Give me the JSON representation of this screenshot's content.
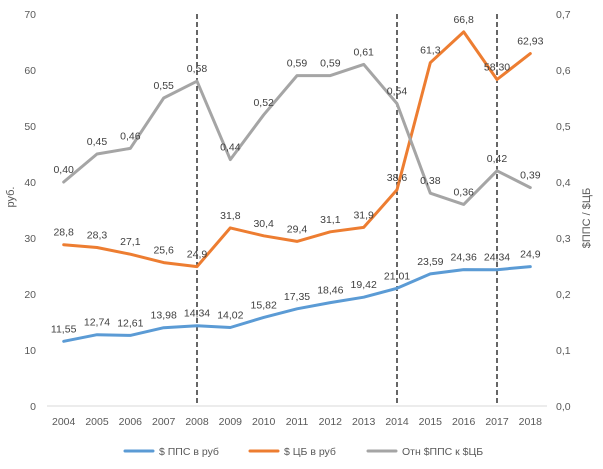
{
  "chart_data": {
    "type": "line",
    "x": [
      "2004",
      "2005",
      "2006",
      "2007",
      "2008",
      "2009",
      "2010",
      "2011",
      "2012",
      "2013",
      "2014",
      "2015",
      "2016",
      "2017",
      "2018"
    ],
    "ylabel": "руб.",
    "ylabel_right": "$ППС / $ЦБ",
    "ylim": [
      0,
      70
    ],
    "ylim_right": [
      0,
      0.7
    ],
    "yticks": [
      "0",
      "10",
      "20",
      "30",
      "40",
      "50",
      "60",
      "70"
    ],
    "yticks_right": [
      "0,0",
      "0,1",
      "0,2",
      "0,3",
      "0,4",
      "0,5",
      "0,6",
      "0,7"
    ],
    "vlines": [
      "2008",
      "2014",
      "2017"
    ],
    "grid": false,
    "legend_position": "bottom",
    "series": [
      {
        "name": "$ ППС в руб",
        "axis": "left",
        "color": "#5B9BD5",
        "values": [
          11.55,
          12.74,
          12.61,
          13.98,
          14.34,
          14.02,
          15.82,
          17.35,
          18.46,
          19.42,
          21.01,
          23.59,
          24.36,
          24.34,
          24.9
        ],
        "labels": [
          "11,55",
          "12,74",
          "12,61",
          "13,98",
          "14,34",
          "14,02",
          "15,82",
          "17,35",
          "18,46",
          "19,42",
          "21,01",
          "23,59",
          "24,36",
          "24,34",
          "24,9"
        ]
      },
      {
        "name": "$ ЦБ в руб",
        "axis": "left",
        "color": "#ED7D31",
        "values": [
          28.8,
          28.3,
          27.1,
          25.6,
          24.9,
          31.8,
          30.4,
          29.4,
          31.1,
          31.9,
          38.6,
          61.3,
          66.8,
          58.3,
          62.93
        ],
        "labels": [
          "28,8",
          "28,3",
          "27,1",
          "25,6",
          "24,9",
          "31,8",
          "30,4",
          "29,4",
          "31,1",
          "31,9",
          "38,6",
          "61,3",
          "66,8",
          "58,30",
          "62,93"
        ]
      },
      {
        "name": "Отн $ППС к $ЦБ",
        "axis": "right",
        "color": "#A5A5A5",
        "values": [
          0.4,
          0.45,
          0.46,
          0.55,
          0.58,
          0.44,
          0.52,
          0.59,
          0.59,
          0.61,
          0.54,
          0.38,
          0.36,
          0.42,
          0.39
        ],
        "labels": [
          "0,40",
          "0,45",
          "0,46",
          "0,55",
          "0,58",
          "0,44",
          "0,52",
          "0,59",
          "0,59",
          "0,61",
          "0,54",
          "0,38",
          "0,36",
          "0,42",
          "0,39"
        ]
      }
    ]
  }
}
